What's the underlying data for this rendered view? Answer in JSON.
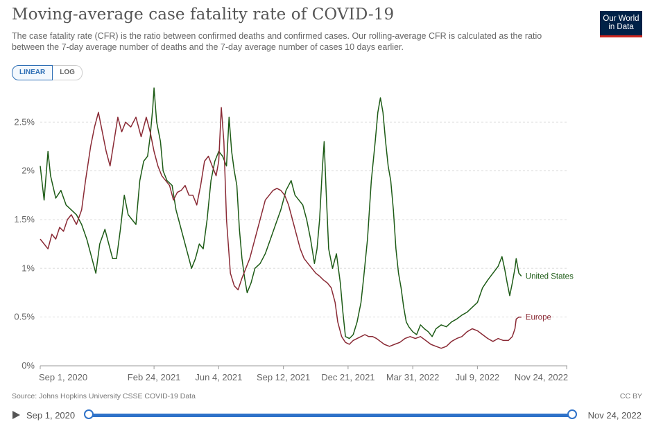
{
  "header": {
    "title": "Moving-average case fatality rate of COVID-19",
    "subtitle": "The case fatality rate (CFR) is the ratio between confirmed deaths and confirmed cases. Our rolling-average CFR is calculated as the ratio between the 7-day average number of deaths and the 7-day average number of cases 10 days earlier.",
    "logo_line1": "Our World",
    "logo_line2": "in Data"
  },
  "scale_toggle": {
    "linear": "LINEAR",
    "log": "LOG",
    "selected": "LINEAR"
  },
  "footer": {
    "source": "Source: Johns Hopkins University CSSE COVID-19 Data",
    "license": "CC BY"
  },
  "timeline": {
    "start": "Sep 1, 2020",
    "end": "Nov 24, 2022"
  },
  "colors": {
    "united_states": "#1d5b16",
    "europe": "#8a2a35",
    "grid": "#dddddd",
    "axis_text": "#666666"
  },
  "chart_data": {
    "type": "line",
    "title": "Moving-average case fatality rate of COVID-19",
    "xlabel": "",
    "ylabel": "",
    "y_unit": "%",
    "ylim": [
      0,
      2.9
    ],
    "y_ticks": [
      0,
      0.5,
      1,
      1.5,
      2,
      2.5
    ],
    "y_tick_labels": [
      "0%",
      "0.5%",
      "1%",
      "1.5%",
      "2%",
      "2.5%"
    ],
    "x_range_days": [
      0,
      815
    ],
    "x_ticks": [
      0,
      176,
      276,
      376,
      476,
      576,
      676,
      814
    ],
    "x_tick_labels": [
      "Sep 1, 2020",
      "Feb 24, 2021",
      "Jun 4, 2021",
      "Sep 12, 2021",
      "Dec 21, 2021",
      "Mar 31, 2022",
      "Jul 9, 2022",
      "Nov 24, 2022"
    ],
    "series": [
      {
        "name": "United States",
        "label": "United States",
        "points": [
          [
            0,
            2.05
          ],
          [
            6,
            1.7
          ],
          [
            12,
            2.2
          ],
          [
            16,
            1.95
          ],
          [
            24,
            1.72
          ],
          [
            32,
            1.8
          ],
          [
            40,
            1.65
          ],
          [
            48,
            1.6
          ],
          [
            56,
            1.55
          ],
          [
            64,
            1.45
          ],
          [
            72,
            1.3
          ],
          [
            80,
            1.1
          ],
          [
            86,
            0.95
          ],
          [
            92,
            1.25
          ],
          [
            100,
            1.4
          ],
          [
            106,
            1.25
          ],
          [
            112,
            1.1
          ],
          [
            118,
            1.1
          ],
          [
            124,
            1.4
          ],
          [
            130,
            1.75
          ],
          [
            136,
            1.55
          ],
          [
            142,
            1.5
          ],
          [
            148,
            1.45
          ],
          [
            154,
            1.9
          ],
          [
            160,
            2.1
          ],
          [
            166,
            2.15
          ],
          [
            170,
            2.35
          ],
          [
            174,
            2.65
          ],
          [
            176,
            2.85
          ],
          [
            180,
            2.5
          ],
          [
            186,
            2.3
          ],
          [
            190,
            2.0
          ],
          [
            196,
            1.9
          ],
          [
            204,
            1.85
          ],
          [
            210,
            1.6
          ],
          [
            216,
            1.45
          ],
          [
            222,
            1.3
          ],
          [
            228,
            1.15
          ],
          [
            234,
            1.0
          ],
          [
            240,
            1.1
          ],
          [
            246,
            1.25
          ],
          [
            252,
            1.2
          ],
          [
            258,
            1.5
          ],
          [
            264,
            1.9
          ],
          [
            270,
            2.1
          ],
          [
            276,
            2.2
          ],
          [
            282,
            2.15
          ],
          [
            288,
            2.05
          ],
          [
            292,
            2.55
          ],
          [
            296,
            2.2
          ],
          [
            300,
            2.0
          ],
          [
            304,
            1.85
          ],
          [
            308,
            1.4
          ],
          [
            312,
            1.1
          ],
          [
            316,
            0.9
          ],
          [
            320,
            0.75
          ],
          [
            326,
            0.85
          ],
          [
            332,
            1.0
          ],
          [
            340,
            1.05
          ],
          [
            348,
            1.15
          ],
          [
            356,
            1.3
          ],
          [
            364,
            1.45
          ],
          [
            372,
            1.6
          ],
          [
            380,
            1.8
          ],
          [
            388,
            1.9
          ],
          [
            394,
            1.75
          ],
          [
            400,
            1.7
          ],
          [
            406,
            1.65
          ],
          [
            412,
            1.5
          ],
          [
            418,
            1.3
          ],
          [
            424,
            1.05
          ],
          [
            428,
            1.2
          ],
          [
            432,
            1.5
          ],
          [
            436,
            2.0
          ],
          [
            439,
            2.3
          ],
          [
            442,
            1.8
          ],
          [
            446,
            1.2
          ],
          [
            452,
            1.0
          ],
          [
            458,
            1.15
          ],
          [
            464,
            0.85
          ],
          [
            468,
            0.55
          ],
          [
            472,
            0.3
          ],
          [
            478,
            0.28
          ],
          [
            484,
            0.32
          ],
          [
            490,
            0.45
          ],
          [
            496,
            0.65
          ],
          [
            500,
            0.9
          ],
          [
            506,
            1.3
          ],
          [
            512,
            1.9
          ],
          [
            518,
            2.3
          ],
          [
            522,
            2.6
          ],
          [
            526,
            2.75
          ],
          [
            530,
            2.6
          ],
          [
            534,
            2.3
          ],
          [
            538,
            2.05
          ],
          [
            542,
            1.9
          ],
          [
            546,
            1.6
          ],
          [
            550,
            1.2
          ],
          [
            554,
            0.95
          ],
          [
            558,
            0.8
          ],
          [
            562,
            0.6
          ],
          [
            566,
            0.45
          ],
          [
            570,
            0.4
          ],
          [
            576,
            0.35
          ],
          [
            582,
            0.32
          ],
          [
            588,
            0.42
          ],
          [
            594,
            0.38
          ],
          [
            600,
            0.35
          ],
          [
            606,
            0.3
          ],
          [
            612,
            0.38
          ],
          [
            620,
            0.42
          ],
          [
            628,
            0.4
          ],
          [
            636,
            0.45
          ],
          [
            644,
            0.48
          ],
          [
            652,
            0.52
          ],
          [
            660,
            0.55
          ],
          [
            668,
            0.6
          ],
          [
            676,
            0.65
          ],
          [
            684,
            0.8
          ],
          [
            692,
            0.88
          ],
          [
            700,
            0.95
          ],
          [
            708,
            1.02
          ],
          [
            714,
            1.12
          ],
          [
            718,
            1.0
          ],
          [
            722,
            0.85
          ],
          [
            726,
            0.72
          ],
          [
            730,
            0.85
          ],
          [
            734,
            1.0
          ],
          [
            736,
            1.1
          ],
          [
            740,
            0.95
          ],
          [
            744,
            0.92
          ]
        ]
      },
      {
        "name": "Europe",
        "label": "Europe",
        "points": [
          [
            0,
            1.3
          ],
          [
            6,
            1.25
          ],
          [
            12,
            1.2
          ],
          [
            18,
            1.35
          ],
          [
            24,
            1.3
          ],
          [
            30,
            1.42
          ],
          [
            36,
            1.38
          ],
          [
            42,
            1.5
          ],
          [
            48,
            1.55
          ],
          [
            56,
            1.45
          ],
          [
            64,
            1.6
          ],
          [
            70,
            1.9
          ],
          [
            78,
            2.25
          ],
          [
            84,
            2.45
          ],
          [
            90,
            2.6
          ],
          [
            96,
            2.4
          ],
          [
            102,
            2.2
          ],
          [
            108,
            2.05
          ],
          [
            114,
            2.3
          ],
          [
            120,
            2.55
          ],
          [
            126,
            2.4
          ],
          [
            132,
            2.5
          ],
          [
            140,
            2.45
          ],
          [
            148,
            2.55
          ],
          [
            156,
            2.35
          ],
          [
            164,
            2.55
          ],
          [
            170,
            2.4
          ],
          [
            176,
            2.2
          ],
          [
            182,
            2.05
          ],
          [
            188,
            1.95
          ],
          [
            194,
            1.9
          ],
          [
            200,
            1.85
          ],
          [
            206,
            1.7
          ],
          [
            212,
            1.78
          ],
          [
            218,
            1.8
          ],
          [
            224,
            1.85
          ],
          [
            230,
            1.75
          ],
          [
            236,
            1.75
          ],
          [
            242,
            1.65
          ],
          [
            248,
            1.85
          ],
          [
            254,
            2.1
          ],
          [
            260,
            2.15
          ],
          [
            266,
            2.05
          ],
          [
            272,
            1.95
          ],
          [
            276,
            2.1
          ],
          [
            280,
            2.65
          ],
          [
            284,
            2.3
          ],
          [
            288,
            1.5
          ],
          [
            294,
            0.95
          ],
          [
            300,
            0.82
          ],
          [
            306,
            0.78
          ],
          [
            312,
            0.9
          ],
          [
            318,
            1.0
          ],
          [
            324,
            1.1
          ],
          [
            330,
            1.25
          ],
          [
            336,
            1.4
          ],
          [
            342,
            1.55
          ],
          [
            348,
            1.7
          ],
          [
            354,
            1.75
          ],
          [
            360,
            1.8
          ],
          [
            366,
            1.82
          ],
          [
            372,
            1.8
          ],
          [
            378,
            1.75
          ],
          [
            384,
            1.65
          ],
          [
            390,
            1.5
          ],
          [
            396,
            1.35
          ],
          [
            402,
            1.2
          ],
          [
            408,
            1.1
          ],
          [
            414,
            1.05
          ],
          [
            420,
            1.0
          ],
          [
            426,
            0.95
          ],
          [
            432,
            0.92
          ],
          [
            438,
            0.88
          ],
          [
            444,
            0.85
          ],
          [
            450,
            0.8
          ],
          [
            456,
            0.65
          ],
          [
            460,
            0.45
          ],
          [
            466,
            0.3
          ],
          [
            472,
            0.24
          ],
          [
            478,
            0.22
          ],
          [
            484,
            0.26
          ],
          [
            490,
            0.28
          ],
          [
            496,
            0.3
          ],
          [
            502,
            0.32
          ],
          [
            508,
            0.3
          ],
          [
            514,
            0.3
          ],
          [
            520,
            0.28
          ],
          [
            526,
            0.25
          ],
          [
            532,
            0.22
          ],
          [
            540,
            0.2
          ],
          [
            548,
            0.22
          ],
          [
            556,
            0.24
          ],
          [
            564,
            0.28
          ],
          [
            572,
            0.3
          ],
          [
            580,
            0.28
          ],
          [
            588,
            0.3
          ],
          [
            596,
            0.26
          ],
          [
            604,
            0.22
          ],
          [
            612,
            0.2
          ],
          [
            620,
            0.18
          ],
          [
            628,
            0.2
          ],
          [
            636,
            0.25
          ],
          [
            644,
            0.28
          ],
          [
            652,
            0.3
          ],
          [
            660,
            0.35
          ],
          [
            668,
            0.38
          ],
          [
            676,
            0.36
          ],
          [
            684,
            0.32
          ],
          [
            692,
            0.28
          ],
          [
            700,
            0.25
          ],
          [
            708,
            0.28
          ],
          [
            716,
            0.26
          ],
          [
            724,
            0.26
          ],
          [
            730,
            0.3
          ],
          [
            734,
            0.38
          ],
          [
            736,
            0.48
          ],
          [
            740,
            0.5
          ],
          [
            744,
            0.5
          ]
        ]
      }
    ]
  }
}
